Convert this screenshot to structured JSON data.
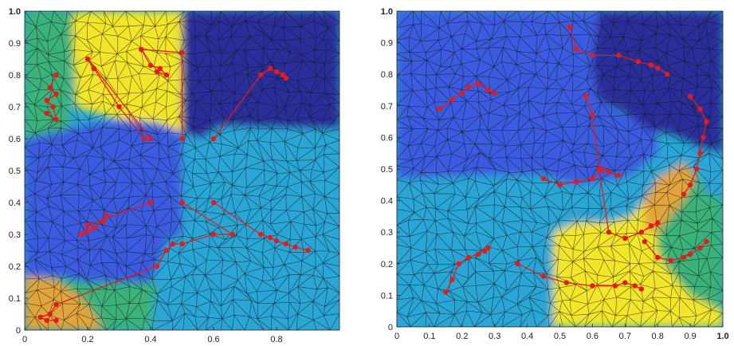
{
  "colors": {
    "dark_navy": "#2b2e9a",
    "blue": "#3b5ce0",
    "cyan": "#2aa6d6",
    "green": "#3bb27a",
    "yellow": "#f2e52a",
    "orange": "#e2a53a",
    "path": "#e41b1b",
    "mesh": "#111111"
  },
  "panels": [
    {
      "name": "left",
      "xticks": [
        "0",
        "0.2",
        "0.4",
        "0.6",
        "0.8"
      ],
      "yticks": [
        "0",
        "0.1",
        "0.2",
        "0.3",
        "0.4",
        "0.5",
        "0.6",
        "0.7",
        "0.8",
        "0.9",
        "1.0"
      ],
      "regions": [
        {
          "color": "green",
          "poly": [
            [
              0,
              0.6
            ],
            [
              0.14,
              0.63
            ],
            [
              0.16,
              0.97
            ],
            [
              0.17,
              1
            ],
            [
              0,
              1
            ]
          ]
        },
        {
          "color": "yellow",
          "poly": [
            [
              0.15,
              0.98
            ],
            [
              0.16,
              0.7
            ],
            [
              0.3,
              0.66
            ],
            [
              0.42,
              0.65
            ],
            [
              0.5,
              0.62
            ],
            [
              0.5,
              1
            ],
            [
              0.17,
              1
            ]
          ]
        },
        {
          "color": "dark_navy",
          "poly": [
            [
              0.5,
              1
            ],
            [
              0.5,
              0.62
            ],
            [
              0.56,
              0.6
            ],
            [
              0.62,
              0.64
            ],
            [
              1,
              0.63
            ],
            [
              1,
              1
            ]
          ]
        },
        {
          "color": "blue",
          "poly": [
            [
              0,
              0.6
            ],
            [
              0.14,
              0.63
            ],
            [
              0.3,
              0.66
            ],
            [
              0.42,
              0.65
            ],
            [
              0.5,
              0.62
            ],
            [
              0.5,
              0.45
            ],
            [
              0.5,
              0.3
            ],
            [
              0.45,
              0.28
            ],
            [
              0.4,
              0.15
            ],
            [
              0.2,
              0.15
            ],
            [
              0.1,
              0.17
            ],
            [
              0,
              0.17
            ]
          ]
        },
        {
          "color": "cyan",
          "poly": [
            [
              0.5,
              0.62
            ],
            [
              0.56,
              0.6
            ],
            [
              0.62,
              0.64
            ],
            [
              1,
              0.63
            ],
            [
              1,
              0
            ],
            [
              0.4,
              0
            ],
            [
              0.42,
              0.15
            ],
            [
              0.45,
              0.28
            ],
            [
              0.5,
              0.3
            ]
          ]
        },
        {
          "color": "orange",
          "poly": [
            [
              0,
              0.17
            ],
            [
              0.1,
              0.16
            ],
            [
              0.2,
              0.08
            ],
            [
              0.25,
              0
            ],
            [
              0,
              0
            ]
          ]
        },
        {
          "color": "green",
          "poly": [
            [
              0.1,
              0.16
            ],
            [
              0.2,
              0.15
            ],
            [
              0.4,
              0.15
            ],
            [
              0.42,
              0.15
            ],
            [
              0.4,
              0
            ],
            [
              0.25,
              0
            ],
            [
              0.2,
              0.08
            ]
          ]
        }
      ],
      "paths": [
        {
          "pts": [
            [
              0.4,
              0.6
            ],
            [
              0.2,
              0.85
            ],
            [
              0.22,
              0.82
            ],
            [
              0.3,
              0.7
            ],
            [
              0.38,
              0.6
            ]
          ]
        },
        {
          "pts": [
            [
              0.5,
              0.6
            ],
            [
              0.5,
              0.87
            ],
            [
              0.37,
              0.88
            ],
            [
              0.4,
              0.83
            ],
            [
              0.43,
              0.82
            ],
            [
              0.45,
              0.8
            ],
            [
              0.42,
              0.81
            ]
          ]
        },
        {
          "pts": [
            [
              0.6,
              0.6
            ],
            [
              0.75,
              0.8
            ],
            [
              0.78,
              0.82
            ],
            [
              0.8,
              0.81
            ],
            [
              0.82,
              0.8
            ],
            [
              0.83,
              0.79
            ]
          ]
        },
        {
          "pts": [
            [
              0.1,
              0.8
            ],
            [
              0.08,
              0.76
            ],
            [
              0.1,
              0.74
            ],
            [
              0.07,
              0.72
            ],
            [
              0.09,
              0.7
            ],
            [
              0.1,
              0.66
            ],
            [
              0.07,
              0.68
            ]
          ]
        },
        {
          "pts": [
            [
              0.4,
              0.4
            ],
            [
              0.2,
              0.33
            ],
            [
              0.18,
              0.3
            ],
            [
              0.2,
              0.31
            ],
            [
              0.22,
              0.32
            ],
            [
              0.25,
              0.34
            ],
            [
              0.26,
              0.36
            ]
          ]
        },
        {
          "pts": [
            [
              0.5,
              0.4
            ],
            [
              0.66,
              0.3
            ],
            [
              0.6,
              0.3
            ],
            [
              0.5,
              0.27
            ],
            [
              0.47,
              0.27
            ],
            [
              0.45,
              0.25
            ],
            [
              0.42,
              0.2
            ],
            [
              0.1,
              0.08
            ],
            [
              0.08,
              0.05
            ],
            [
              0.05,
              0.04
            ],
            [
              0.07,
              0.03
            ],
            [
              0.1,
              0.03
            ]
          ]
        },
        {
          "pts": [
            [
              0.6,
              0.4
            ],
            [
              0.75,
              0.3
            ],
            [
              0.78,
              0.29
            ],
            [
              0.8,
              0.28
            ],
            [
              0.83,
              0.27
            ],
            [
              0.86,
              0.26
            ],
            [
              0.9,
              0.25
            ]
          ]
        }
      ]
    },
    {
      "name": "right",
      "xticks": [
        "0",
        "0.1",
        "0.2",
        "0.3",
        "0.4",
        "0.5",
        "0.6",
        "0.7",
        "0.8",
        "0.9",
        "1.0"
      ],
      "yticks": [
        "0",
        "0.1",
        "0.2",
        "0.3",
        "0.4",
        "0.5",
        "0.6",
        "0.7",
        "0.8",
        "0.9",
        "1.0"
      ],
      "regions": [
        {
          "color": "blue",
          "poly": [
            [
              0,
              1
            ],
            [
              0.62,
              1
            ],
            [
              0.6,
              0.82
            ],
            [
              0.62,
              0.72
            ],
            [
              0.68,
              0.68
            ],
            [
              0.76,
              0.65
            ],
            [
              0.8,
              0.62
            ],
            [
              0.8,
              0.55
            ],
            [
              0.72,
              0.48
            ],
            [
              0.63,
              0.46
            ],
            [
              0.55,
              0.45
            ],
            [
              0.45,
              0.48
            ],
            [
              0.3,
              0.48
            ],
            [
              0,
              0.47
            ]
          ]
        },
        {
          "color": "dark_navy",
          "poly": [
            [
              0.62,
              1
            ],
            [
              1,
              1
            ],
            [
              1,
              0.55
            ],
            [
              0.92,
              0.57
            ],
            [
              0.86,
              0.6
            ],
            [
              0.78,
              0.62
            ],
            [
              0.7,
              0.68
            ],
            [
              0.62,
              0.72
            ],
            [
              0.6,
              0.82
            ]
          ]
        },
        {
          "color": "cyan",
          "poly": [
            [
              0,
              0.47
            ],
            [
              0.3,
              0.48
            ],
            [
              0.45,
              0.48
            ],
            [
              0.55,
              0.45
            ],
            [
              0.63,
              0.46
            ],
            [
              0.72,
              0.48
            ],
            [
              0.8,
              0.55
            ],
            [
              0.8,
              0.62
            ],
            [
              0.86,
              0.6
            ],
            [
              0.92,
              0.57
            ],
            [
              1,
              0.55
            ],
            [
              1,
              0.5
            ],
            [
              0.88,
              0.52
            ],
            [
              0.8,
              0.47
            ],
            [
              0.76,
              0.4
            ],
            [
              0.72,
              0.35
            ],
            [
              0.65,
              0.33
            ],
            [
              0.55,
              0.33
            ],
            [
              0.48,
              0.3
            ],
            [
              0.48,
              0
            ],
            [
              0,
              0
            ]
          ]
        },
        {
          "color": "yellow",
          "poly": [
            [
              0.48,
              0.3
            ],
            [
              0.55,
              0.33
            ],
            [
              0.65,
              0.33
            ],
            [
              0.72,
              0.35
            ],
            [
              0.76,
              0.4
            ],
            [
              0.8,
              0.47
            ],
            [
              0.88,
              0.52
            ],
            [
              0.92,
              0.48
            ],
            [
              0.95,
              0.42
            ],
            [
              1,
              0.4
            ],
            [
              1,
              0
            ],
            [
              0.48,
              0
            ]
          ]
        },
        {
          "color": "orange",
          "poly": [
            [
              0.76,
              0.4
            ],
            [
              0.8,
              0.47
            ],
            [
              0.88,
              0.52
            ],
            [
              0.92,
              0.48
            ],
            [
              0.88,
              0.4
            ],
            [
              0.84,
              0.35
            ],
            [
              0.8,
              0.3
            ],
            [
              0.76,
              0.3
            ]
          ]
        },
        {
          "color": "green",
          "poly": [
            [
              0.8,
              0.3
            ],
            [
              0.84,
              0.35
            ],
            [
              0.88,
              0.4
            ],
            [
              0.92,
              0.48
            ],
            [
              0.95,
              0.42
            ],
            [
              1,
              0.4
            ],
            [
              1,
              0.05
            ],
            [
              0.9,
              0.1
            ],
            [
              0.82,
              0.2
            ],
            [
              0.8,
              0.25
            ]
          ]
        }
      ],
      "paths": [
        {
          "pts": [
            [
              0.53,
              0.95
            ],
            [
              0.55,
              0.88
            ],
            [
              0.6,
              0.86
            ],
            [
              0.68,
              0.86
            ],
            [
              0.74,
              0.84
            ],
            [
              0.78,
              0.83
            ],
            [
              0.8,
              0.82
            ],
            [
              0.83,
              0.8
            ]
          ]
        },
        {
          "pts": [
            [
              0.13,
              0.69
            ],
            [
              0.17,
              0.72
            ],
            [
              0.2,
              0.74
            ],
            [
              0.22,
              0.76
            ],
            [
              0.25,
              0.77
            ],
            [
              0.28,
              0.75
            ],
            [
              0.3,
              0.74
            ]
          ]
        },
        {
          "pts": [
            [
              0.9,
              0.73
            ],
            [
              0.93,
              0.69
            ],
            [
              0.95,
              0.65
            ],
            [
              0.94,
              0.6
            ],
            [
              0.93,
              0.55
            ],
            [
              0.92,
              0.5
            ],
            [
              0.9,
              0.45
            ],
            [
              0.88,
              0.42
            ]
          ]
        },
        {
          "pts": [
            [
              0.58,
              0.73
            ],
            [
              0.6,
              0.67
            ],
            [
              0.62,
              0.5
            ],
            [
              0.65,
              0.3
            ],
            [
              0.7,
              0.28
            ],
            [
              0.75,
              0.3
            ],
            [
              0.78,
              0.32
            ],
            [
              0.8,
              0.33
            ]
          ]
        },
        {
          "pts": [
            [
              0.45,
              0.47
            ],
            [
              0.5,
              0.45
            ],
            [
              0.55,
              0.46
            ],
            [
              0.6,
              0.47
            ],
            [
              0.63,
              0.5
            ],
            [
              0.65,
              0.49
            ],
            [
              0.68,
              0.48
            ]
          ]
        },
        {
          "pts": [
            [
              0.15,
              0.11
            ],
            [
              0.17,
              0.15
            ],
            [
              0.19,
              0.2
            ],
            [
              0.22,
              0.22
            ],
            [
              0.25,
              0.23
            ],
            [
              0.27,
              0.24
            ],
            [
              0.28,
              0.25
            ]
          ]
        },
        {
          "pts": [
            [
              0.37,
              0.2
            ],
            [
              0.45,
              0.16
            ],
            [
              0.52,
              0.14
            ],
            [
              0.6,
              0.13
            ],
            [
              0.67,
              0.13
            ],
            [
              0.7,
              0.14
            ],
            [
              0.73,
              0.13
            ],
            [
              0.75,
              0.12
            ]
          ]
        },
        {
          "pts": [
            [
              0.76,
              0.27
            ],
            [
              0.8,
              0.22
            ],
            [
              0.84,
              0.21
            ],
            [
              0.88,
              0.22
            ],
            [
              0.9,
              0.23
            ],
            [
              0.93,
              0.25
            ],
            [
              0.95,
              0.27
            ]
          ]
        }
      ]
    }
  ]
}
